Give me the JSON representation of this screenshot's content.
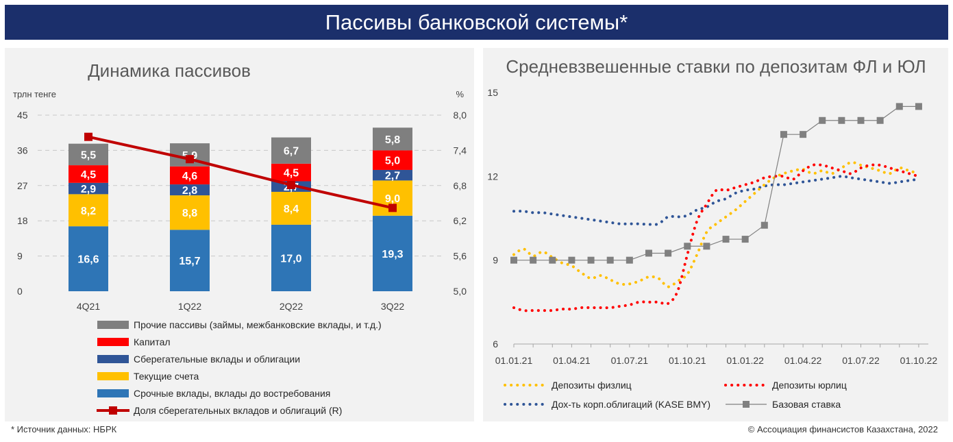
{
  "header": {
    "title": "Пассивы банковской системы*"
  },
  "footer": {
    "source": "* Источник данных: НБРК",
    "copyright": "© Ассоциация финансистов Казахстана, 2022"
  },
  "colors": {
    "term": "#2e75b6",
    "current": "#ffc000",
    "savings": "#2f5597",
    "capital": "#ff0000",
    "other": "#7f7f7f",
    "share": "#c00000",
    "base_rate": "#808080",
    "dep_fl": "#ffc000",
    "dep_ul": "#ff0000",
    "kase": "#2f5597"
  },
  "chart_data": [
    {
      "type": "bar",
      "stacked": true,
      "title": "Динамика пассивов",
      "ylabel": "трлн тенге",
      "y2label": "%",
      "ylim": [
        0,
        45
      ],
      "yticks": [
        "0",
        "9",
        "18",
        "27",
        "36",
        "45"
      ],
      "y2lim": [
        5.0,
        8.0
      ],
      "y2ticks": [
        "5,0",
        "5,6",
        "6,2",
        "6,8",
        "7,4",
        "8,0"
      ],
      "categories": [
        "4Q21",
        "1Q22",
        "2Q22",
        "3Q22"
      ],
      "series": [
        {
          "name": "Срочные вклады, вклады до востребования",
          "color": "#2e75b6",
          "values": [
            16.6,
            15.7,
            17.0,
            19.3
          ],
          "labels": [
            "16,6",
            "15,7",
            "17,0",
            "19,3"
          ]
        },
        {
          "name": "Текущие счета",
          "color": "#ffc000",
          "values": [
            8.2,
            8.8,
            8.4,
            9.0
          ],
          "labels": [
            "8,2",
            "8,8",
            "8,4",
            "9,0"
          ]
        },
        {
          "name": "Сберегательные вклады и облигации",
          "color": "#2f5597",
          "values": [
            2.9,
            2.8,
            2.7,
            2.7
          ],
          "labels": [
            "2,9",
            "2,8",
            "2,7",
            "2,7"
          ]
        },
        {
          "name": "Капитал",
          "color": "#ff0000",
          "values": [
            4.5,
            4.6,
            4.5,
            5.0
          ],
          "labels": [
            "4,5",
            "4,6",
            "4,5",
            "5,0"
          ]
        },
        {
          "name": "Прочие пассивы (займы, межбанковские вклады, и т.д.)",
          "color": "#7f7f7f",
          "values": [
            5.5,
            5.9,
            6.7,
            5.8
          ],
          "labels": [
            "5,5",
            "5,9",
            "6,7",
            "5,8"
          ]
        }
      ],
      "line": {
        "name": "Доля сберегательных вкладов и облигаций (R)",
        "color": "#c00000",
        "values": [
          7.63,
          7.25,
          6.81,
          6.42
        ]
      },
      "legend_order": [
        4,
        3,
        2,
        1,
        0
      ],
      "legend": "bottom",
      "grid": true
    },
    {
      "type": "line",
      "title": "Средневзвешенные ставки по депозитам ФЛ и ЮЛ",
      "ylim": [
        6,
        15
      ],
      "yticks": [
        "6",
        "9",
        "12",
        "15"
      ],
      "xticks": [
        "01.01.21",
        "01.04.21",
        "01.07.21",
        "01.10.21",
        "01.01.22",
        "01.04.22",
        "01.07.22",
        "01.10.22"
      ],
      "x_months_start": "2021-01",
      "grid": false,
      "legend": "bottom",
      "series": [
        {
          "name": "Депозиты физлиц",
          "color": "#ffc000",
          "style": "dotted",
          "x": [
            0,
            0.5,
            1,
            1.5,
            2,
            2.5,
            3,
            3.5,
            4,
            4.5,
            5,
            5.5,
            6,
            6.5,
            7,
            7.5,
            8,
            8.5,
            9,
            9.5,
            10,
            10.5,
            11,
            11.5,
            12,
            12.5,
            13,
            13.5,
            14,
            14.5,
            15,
            15.5,
            16,
            16.5,
            17,
            17.5,
            18,
            18.5,
            19,
            19.5,
            20,
            20.5,
            21
          ],
          "y": [
            9.2,
            9.4,
            9.15,
            9.3,
            9.1,
            8.9,
            8.8,
            8.55,
            8.35,
            8.45,
            8.3,
            8.15,
            8.15,
            8.25,
            8.4,
            8.35,
            8.05,
            8.25,
            8.5,
            9.2,
            10.0,
            10.3,
            10.55,
            10.8,
            11.1,
            11.4,
            11.7,
            11.95,
            12.1,
            12.2,
            12.25,
            12.1,
            12.2,
            12.1,
            12.3,
            12.5,
            12.4,
            12.3,
            12.2,
            12.1,
            12.3,
            12.2,
            12.1
          ]
        },
        {
          "name": "Депозиты юрлиц",
          "color": "#ff0000",
          "style": "dotted",
          "x": [
            0,
            0.5,
            1,
            1.5,
            2,
            2.5,
            3,
            3.5,
            4,
            4.5,
            5,
            5.5,
            6,
            6.5,
            7,
            7.5,
            8,
            8.5,
            9,
            9.5,
            10,
            10.5,
            11,
            11.5,
            12,
            12.5,
            13,
            13.5,
            14,
            14.5,
            15,
            15.5,
            16,
            16.5,
            17,
            17.5,
            18,
            18.5,
            19,
            19.5,
            20,
            20.5,
            21
          ],
          "y": [
            7.3,
            7.2,
            7.2,
            7.2,
            7.2,
            7.25,
            7.25,
            7.3,
            7.3,
            7.3,
            7.3,
            7.35,
            7.4,
            7.5,
            7.5,
            7.5,
            7.45,
            7.9,
            9.2,
            10.4,
            11.0,
            11.5,
            11.5,
            11.6,
            11.7,
            11.8,
            11.95,
            12.0,
            12.0,
            11.9,
            12.2,
            12.4,
            12.4,
            12.3,
            12.2,
            12.1,
            12.3,
            12.4,
            12.4,
            12.3,
            12.2,
            12.1,
            12.0
          ]
        },
        {
          "name": "Дох-ть корп.облигаций (KASE BMY)",
          "color": "#2f5597",
          "style": "dotted",
          "x": [
            0,
            0.5,
            1,
            1.5,
            2,
            2.5,
            3,
            3.5,
            4,
            4.5,
            5,
            5.5,
            6,
            6.5,
            7,
            7.5,
            8,
            8.5,
            9,
            9.5,
            10,
            10.5,
            11,
            11.5,
            12,
            12.5,
            13,
            13.5,
            14,
            14.5,
            15,
            15.5,
            16,
            16.5,
            17,
            17.5,
            18,
            18.5,
            19,
            19.5,
            20,
            20.5,
            21
          ],
          "y": [
            10.75,
            10.75,
            10.7,
            10.7,
            10.65,
            10.6,
            10.55,
            10.5,
            10.45,
            10.4,
            10.35,
            10.3,
            10.3,
            10.3,
            10.28,
            10.3,
            10.55,
            10.55,
            10.6,
            10.8,
            10.9,
            11.1,
            11.2,
            11.4,
            11.5,
            11.55,
            11.65,
            11.7,
            11.7,
            11.75,
            11.8,
            11.85,
            11.9,
            11.95,
            12.0,
            11.95,
            11.9,
            11.85,
            11.8,
            11.75,
            11.8,
            11.85,
            11.9
          ]
        },
        {
          "name": "Базовая ставка",
          "color": "#808080",
          "style": "solid-marker",
          "x": [
            0,
            1,
            2,
            3,
            4,
            5,
            6,
            7,
            8,
            9,
            10,
            11,
            12,
            13,
            14,
            15,
            16,
            17,
            18,
            19,
            20,
            21
          ],
          "y": [
            9.0,
            9.0,
            9.0,
            9.0,
            9.0,
            9.0,
            9.0,
            9.25,
            9.25,
            9.5,
            9.5,
            9.75,
            9.75,
            10.25,
            13.5,
            13.5,
            14.0,
            14.0,
            14.0,
            14.0,
            14.5,
            14.5
          ]
        }
      ],
      "legend_order": [
        0,
        1,
        2,
        3
      ]
    }
  ]
}
